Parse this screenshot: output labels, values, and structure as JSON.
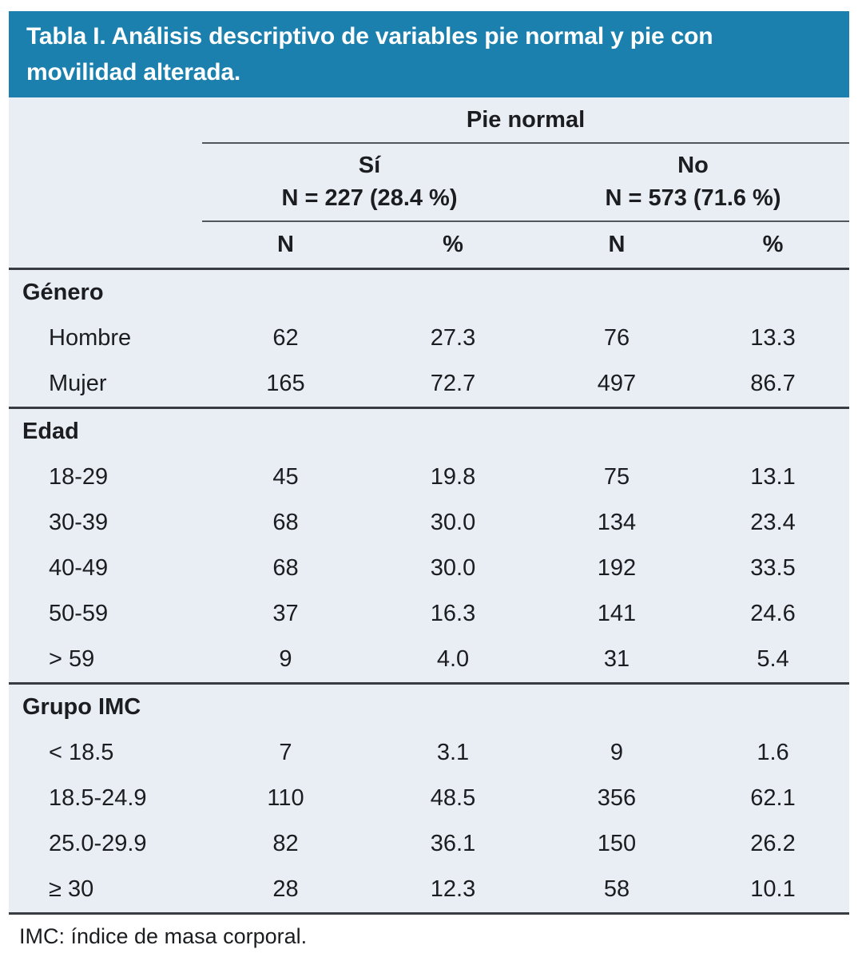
{
  "title": "Tabla I. Análisis descriptivo de variables pie normal y pie con movilidad alterada.",
  "colors": {
    "title_bar_bg": "#1b80ad",
    "title_text": "#ffffff",
    "table_bg": "#e9edf4",
    "rule_dark": "#383c42",
    "rule_light": "#51575e",
    "text": "#1b1d20"
  },
  "header": {
    "group_title": "Pie normal",
    "col_groups": [
      {
        "label": "Sí",
        "sublabel": "N = 227 (28.4 %)"
      },
      {
        "label": "No",
        "sublabel": "N = 573 (71.6 %)"
      }
    ],
    "col_headers": [
      "N",
      "%",
      "N",
      "%"
    ]
  },
  "sections": [
    {
      "label": "Género",
      "rows": [
        {
          "label": "Hombre",
          "values": [
            "62",
            "27.3",
            "76",
            "13.3"
          ]
        },
        {
          "label": "Mujer",
          "values": [
            "165",
            "72.7",
            "497",
            "86.7"
          ]
        }
      ]
    },
    {
      "label": "Edad",
      "rows": [
        {
          "label": "18-29",
          "values": [
            "45",
            "19.8",
            "75",
            "13.1"
          ]
        },
        {
          "label": "30-39",
          "values": [
            "68",
            "30.0",
            "134",
            "23.4"
          ]
        },
        {
          "label": "40-49",
          "values": [
            "68",
            "30.0",
            "192",
            "33.5"
          ]
        },
        {
          "label": "50-59",
          "values": [
            "37",
            "16.3",
            "141",
            "24.6"
          ]
        },
        {
          "label": "> 59",
          "values": [
            "9",
            "4.0",
            "31",
            "5.4"
          ]
        }
      ]
    },
    {
      "label": "Grupo IMC",
      "rows": [
        {
          "label": "< 18.5",
          "values": [
            "7",
            "3.1",
            "9",
            "1.6"
          ]
        },
        {
          "label": "18.5-24.9",
          "values": [
            "110",
            "48.5",
            "356",
            "62.1"
          ]
        },
        {
          "label": "25.0-29.9",
          "values": [
            "82",
            "36.1",
            "150",
            "26.2"
          ]
        },
        {
          "label": "≥ 30",
          "values": [
            "28",
            "12.3",
            "58",
            "10.1"
          ]
        }
      ]
    }
  ],
  "footnote": "IMC: índice de masa corporal.",
  "chart_data": {
    "type": "table",
    "title": "Tabla I. Análisis descriptivo de variables pie normal y pie con movilidad alterada.",
    "column_groups": [
      "Pie normal — Sí N = 227 (28.4 %)",
      "Pie normal — No N = 573 (71.6 %)"
    ],
    "columns": [
      "N",
      "%",
      "N",
      "%"
    ],
    "rows": [
      {
        "section": "Género",
        "category": "Hombre",
        "values": [
          62,
          27.3,
          76,
          13.3
        ]
      },
      {
        "section": "Género",
        "category": "Mujer",
        "values": [
          165,
          72.7,
          497,
          86.7
        ]
      },
      {
        "section": "Edad",
        "category": "18-29",
        "values": [
          45,
          19.8,
          75,
          13.1
        ]
      },
      {
        "section": "Edad",
        "category": "30-39",
        "values": [
          68,
          30.0,
          134,
          23.4
        ]
      },
      {
        "section": "Edad",
        "category": "40-49",
        "values": [
          68,
          30.0,
          192,
          33.5
        ]
      },
      {
        "section": "Edad",
        "category": "50-59",
        "values": [
          37,
          16.3,
          141,
          24.6
        ]
      },
      {
        "section": "Edad",
        "category": "> 59",
        "values": [
          9,
          4.0,
          31,
          5.4
        ]
      },
      {
        "section": "Grupo IMC",
        "category": "< 18.5",
        "values": [
          7,
          3.1,
          9,
          1.6
        ]
      },
      {
        "section": "Grupo IMC",
        "category": "18.5-24.9",
        "values": [
          110,
          48.5,
          356,
          62.1
        ]
      },
      {
        "section": "Grupo IMC",
        "category": "25.0-29.9",
        "values": [
          82,
          36.1,
          150,
          26.2
        ]
      },
      {
        "section": "Grupo IMC",
        "category": "≥ 30",
        "values": [
          28,
          12.3,
          58,
          10.1
        ]
      }
    ]
  }
}
